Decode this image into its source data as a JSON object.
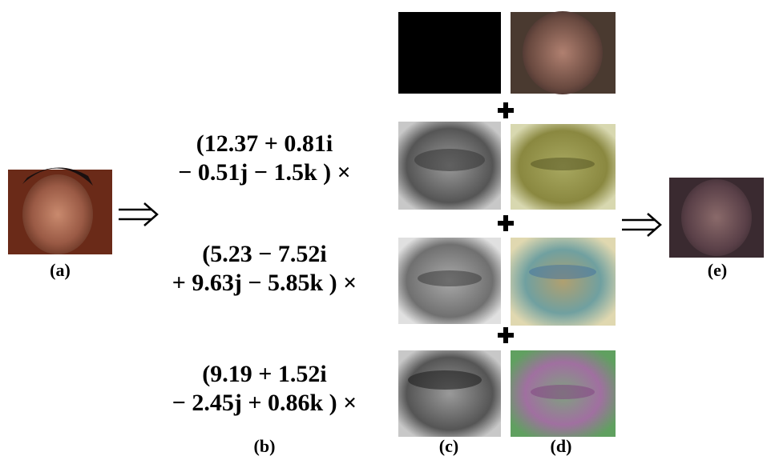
{
  "labels": {
    "a": "(a)",
    "b": "(b)",
    "c": "(c)",
    "d": "(d)",
    "e": "(e)"
  },
  "coefficients": [
    {
      "line1": "(12.37 + 0.81i",
      "line2": "− 0.51j − 1.5k ) ×"
    },
    {
      "line1": "(5.23 − 7.52i",
      "line2": "+ 9.63j − 5.85k ) ×"
    },
    {
      "line1": "(9.19 + 1.52i",
      "line2": "− 2.45j + 0.86k ) ×"
    }
  ]
}
